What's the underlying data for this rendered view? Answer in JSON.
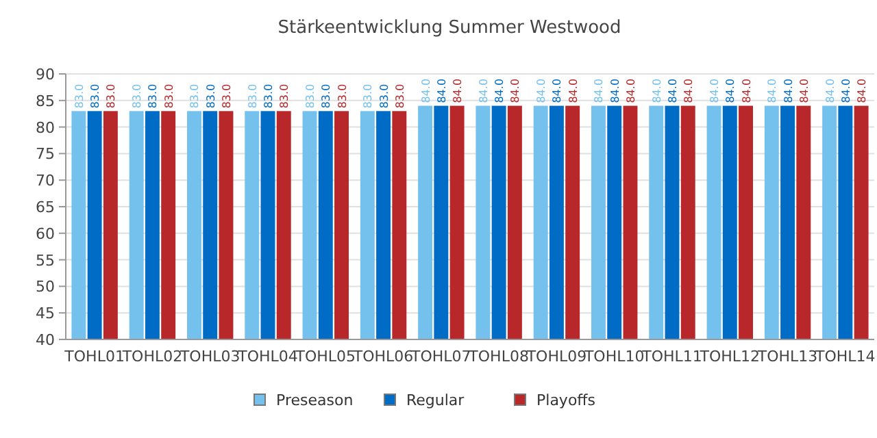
{
  "chart_data": {
    "type": "bar",
    "title": "Stärkeentwicklung Summer Westwood",
    "categories": [
      "TOHL01",
      "TOHL02",
      "TOHL03",
      "TOHL04",
      "TOHL05",
      "TOHL06",
      "TOHL07",
      "TOHL08",
      "TOHL09",
      "TOHL10",
      "TOHL11",
      "TOHL12",
      "TOHL13",
      "TOHL14"
    ],
    "series": [
      {
        "name": "Preseason",
        "color": "#74c1ee",
        "values": [
          83,
          83,
          83,
          83,
          83,
          83,
          84,
          84,
          84,
          84,
          84,
          84,
          84,
          84
        ],
        "value_labels": [
          "83.0",
          "83.0",
          "83.0",
          "83.0",
          "83.0",
          "83.0",
          "84.0",
          "84.0",
          "84.0",
          "84.0",
          "84.0",
          "84.0",
          "84.0",
          "84.0"
        ]
      },
      {
        "name": "Regular",
        "color": "#006cc6",
        "values": [
          83,
          83,
          83,
          83,
          83,
          83,
          84,
          84,
          84,
          84,
          84,
          84,
          84,
          84
        ],
        "value_labels": [
          "83.0",
          "83.0",
          "83.0",
          "83.0",
          "83.0",
          "83.0",
          "84.0",
          "84.0",
          "84.0",
          "84.0",
          "84.0",
          "84.0",
          "84.0",
          "84.0"
        ]
      },
      {
        "name": "Playoffs",
        "color": "#b8282a",
        "values": [
          83,
          83,
          83,
          83,
          83,
          83,
          84,
          84,
          84,
          84,
          84,
          84,
          84,
          84
        ],
        "value_labels": [
          "83.0",
          "83.0",
          "83.0",
          "83.0",
          "83.0",
          "83.0",
          "84.0",
          "84.0",
          "84.0",
          "84.0",
          "84.0",
          "84.0",
          "84.0",
          "84.0"
        ]
      }
    ],
    "ylim": [
      40,
      90
    ],
    "yticks": [
      40,
      45,
      50,
      55,
      60,
      65,
      70,
      75,
      80,
      85,
      90
    ],
    "grid": "y",
    "legend": "bottom"
  }
}
